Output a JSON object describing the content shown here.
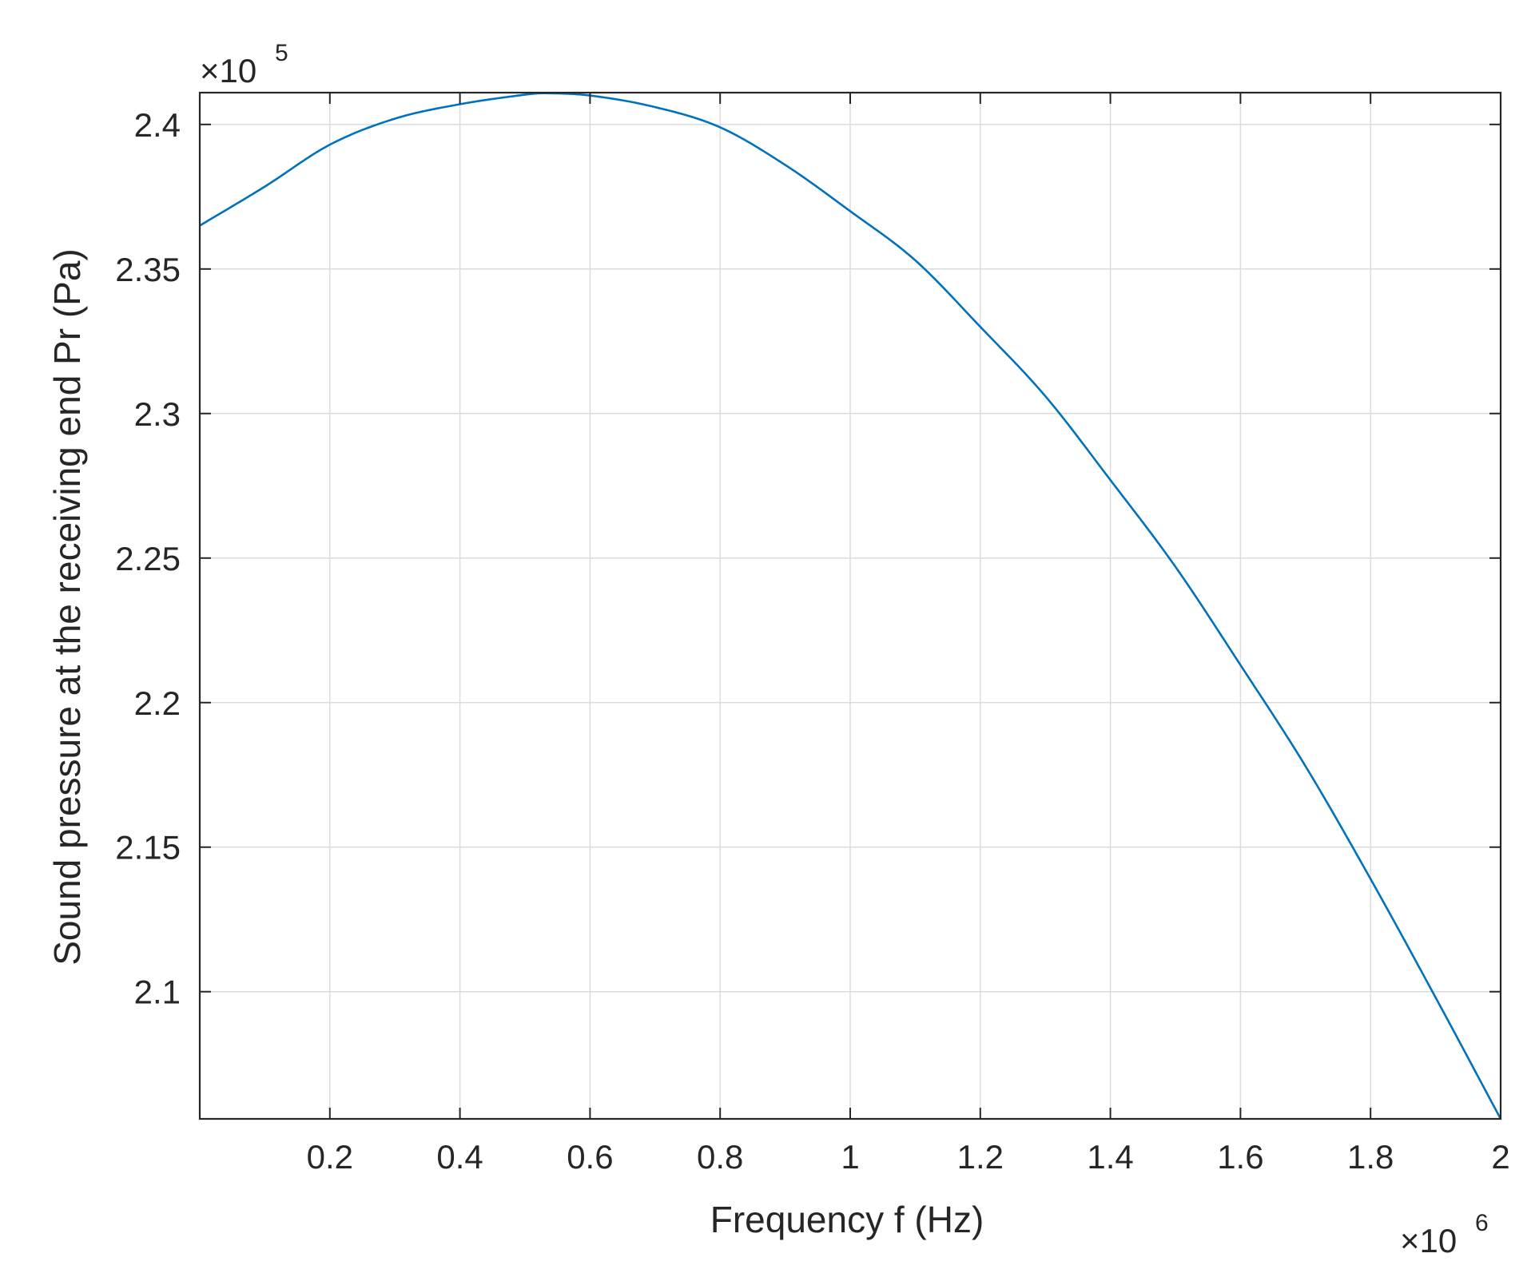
{
  "chart_data": {
    "type": "line",
    "title": "",
    "xlabel": "Frequency f (Hz)",
    "ylabel": "Sound pressure at the receiving end Pr (Pa)",
    "xlim": [
      1,
      2000000
    ],
    "ylim": [
      205600,
      241100
    ],
    "x_ticks": [
      200000,
      400000,
      600000,
      800000,
      1000000,
      1200000,
      1400000,
      1600000,
      1800000,
      2000000
    ],
    "x_tick_labels": [
      "0.2",
      "0.4",
      "0.6",
      "0.8",
      "1",
      "1.2",
      "1.4",
      "1.6",
      "1.8",
      "2"
    ],
    "y_ticks": [
      210000,
      215000,
      220000,
      225000,
      230000,
      235000,
      240000
    ],
    "y_tick_labels": [
      "2.1",
      "2.15",
      "2.2",
      "2.25",
      "2.3",
      "2.35",
      "2.4"
    ],
    "x_multiplier": {
      "base": "×10",
      "exponent": "6"
    },
    "y_multiplier": {
      "base": "×10",
      "exponent": "5"
    },
    "grid": true,
    "legend": "none",
    "series": [
      {
        "color": "#0072BD",
        "x": [
          1,
          100000,
          200000,
          300000,
          400000,
          500000,
          530000,
          600000,
          700000,
          800000,
          900000,
          1000000,
          1100000,
          1200000,
          1300000,
          1400000,
          1500000,
          1600000,
          1700000,
          1800000,
          1900000,
          2000000
        ],
        "y": [
          236500,
          237850,
          239300,
          240200,
          240700,
          241030,
          241080,
          241000,
          240600,
          239900,
          238600,
          237000,
          235300,
          233000,
          230600,
          227700,
          224700,
          221300,
          217800,
          213900,
          209800,
          205600
        ]
      }
    ]
  }
}
